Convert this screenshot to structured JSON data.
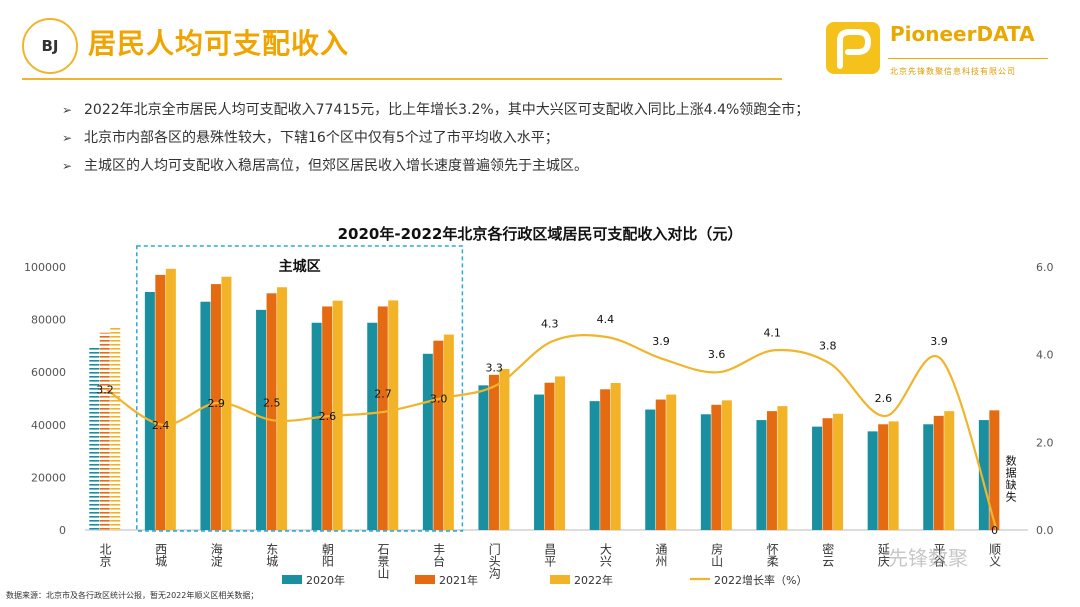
{
  "header": {
    "badge": "BJ",
    "title": "居民人均可支配收入",
    "brand_name": "PioneerDATA",
    "brand_sub": "北京先锋数聚信息科技有限公司"
  },
  "bullets": [
    {
      "mark": "➢",
      "text": "2022年北京全市居民人均可支配收入77415元，比上年增长3.2%，其中大兴区可支配收入同比上涨4.4%领跑全市；"
    },
    {
      "mark": "➢",
      "text": "北京市内部各区的悬殊性较大，下辖16个区中仅有5个过了市平均收入水平；"
    },
    {
      "mark": "➢",
      "text": "主城区的人均可支配收入稳居高位，但郊区居民收入增长速度普遍领先于主城区。"
    }
  ],
  "footnote": "数据来源：北京市及各行政区统计公报，暂无2022年顺义区相关数据；",
  "watermark": "先锋数聚",
  "chart_data": {
    "type": "bar",
    "title": "2020年-2022年北京各行政区域居民可支配收入对比（元）",
    "categories": [
      "北京",
      "西城",
      "海淀",
      "东城",
      "朝阳",
      "石景山",
      "丰台",
      "门头沟",
      "昌平",
      "大兴",
      "通州",
      "房山",
      "怀柔",
      "密云",
      "延庆",
      "平谷",
      "顺义"
    ],
    "series": [
      {
        "name": "2020年",
        "color": "#1a8fa0",
        "values": [
          69434,
          90500,
          86800,
          83700,
          78800,
          78800,
          67000,
          55000,
          51500,
          49000,
          45800,
          44000,
          41800,
          39300,
          37500,
          40200,
          41800
        ]
      },
      {
        "name": "2021年",
        "color": "#e56b12",
        "values": [
          75002,
          97000,
          93500,
          90000,
          85000,
          85000,
          72000,
          59000,
          56000,
          53500,
          49600,
          47600,
          45200,
          42500,
          40200,
          43400,
          45500
        ]
      },
      {
        "name": "2022年",
        "color": "#f2b328",
        "values": [
          77415,
          99300,
          96300,
          92300,
          87200,
          87300,
          74300,
          61200,
          58400,
          55900,
          51500,
          49300,
          47100,
          44200,
          41300,
          45200,
          null
        ]
      }
    ],
    "line": {
      "name": "2022增长率（%）",
      "color": "#f0b52d",
      "values": [
        3.2,
        2.4,
        2.9,
        2.5,
        2.6,
        2.7,
        3.0,
        3.3,
        4.3,
        4.4,
        3.9,
        3.6,
        4.1,
        3.8,
        2.6,
        3.9,
        0
      ],
      "labels": [
        "3.2",
        "2.4",
        "2.9",
        "2.5",
        "2.6",
        "2.7",
        "3.0",
        "3.3",
        "4.3",
        "4.4",
        "3.9",
        "3.6",
        "4.1",
        "3.8",
        "2.6",
        "3.9",
        "0"
      ]
    },
    "y_left": {
      "min": 0,
      "max": 100000,
      "ticks": [
        "0",
        "20000",
        "40000",
        "60000",
        "80000",
        "100000"
      ]
    },
    "y_right": {
      "min": 0,
      "max": 6,
      "ticks": [
        "0.0",
        "2.0",
        "4.0",
        "6.0"
      ]
    },
    "highlight": {
      "label": "主城区",
      "from": "西城",
      "to": "丰台"
    },
    "missing_note": "数据缺失"
  }
}
